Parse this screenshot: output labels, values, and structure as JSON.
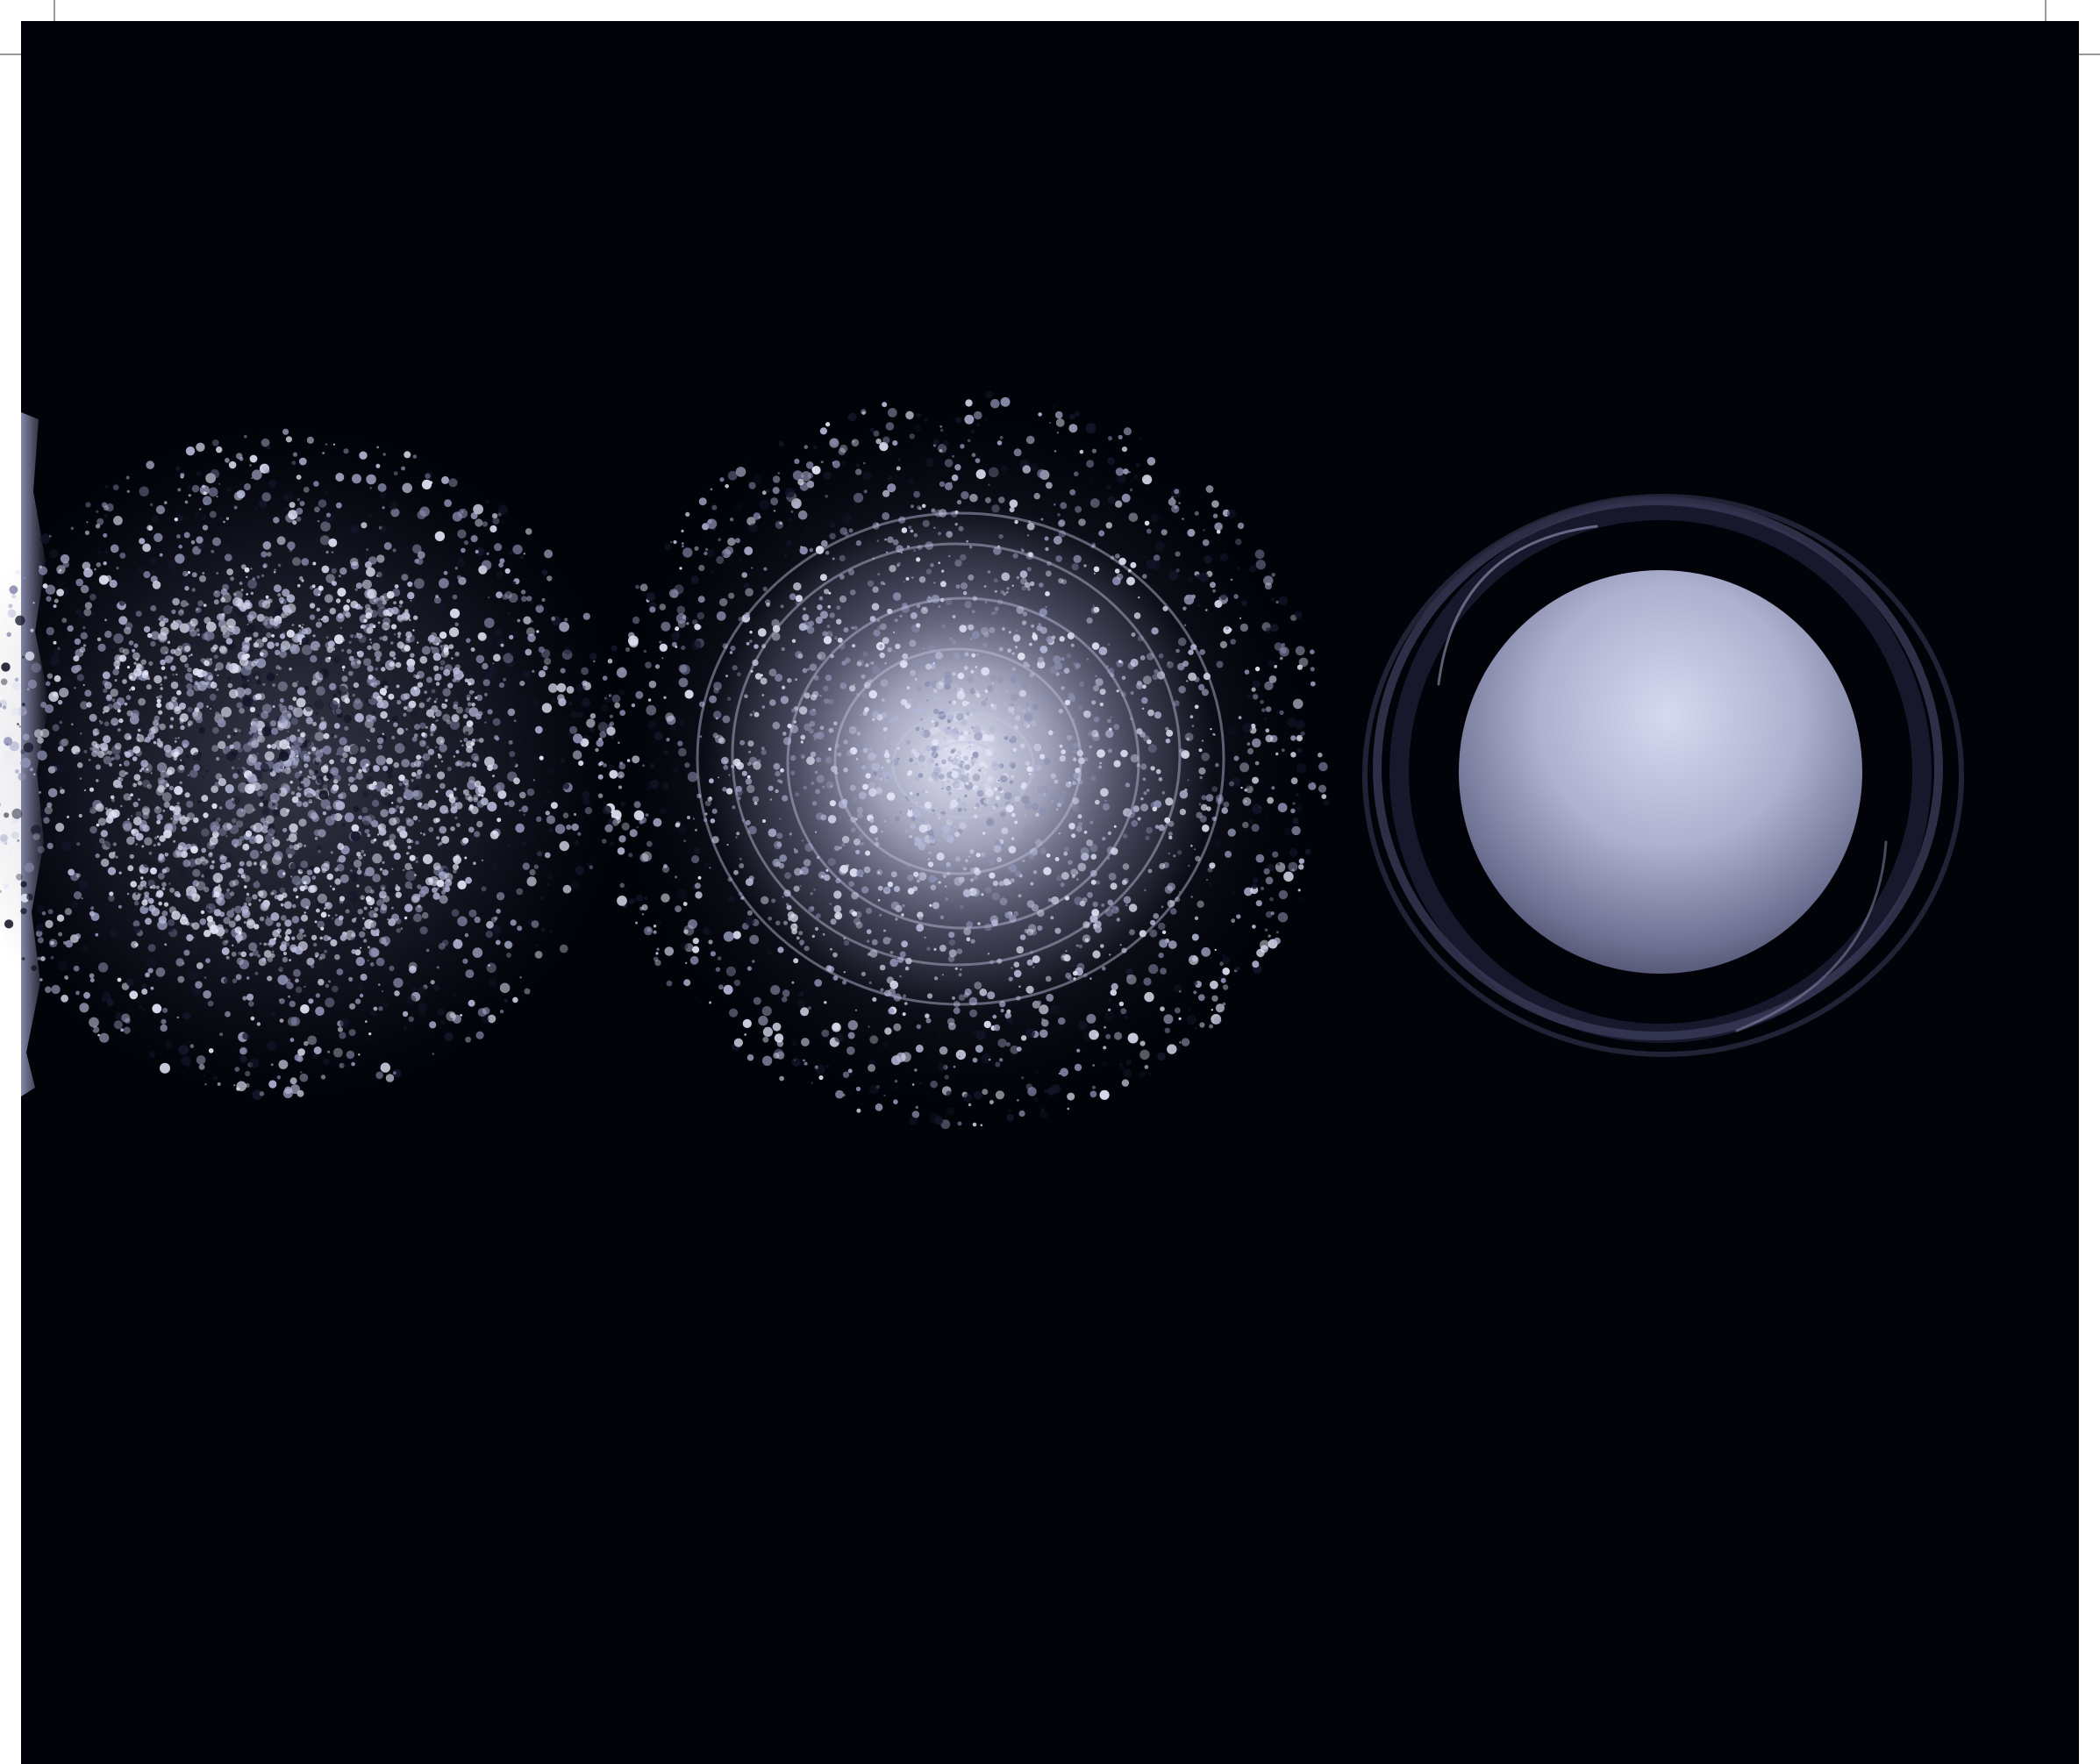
{
  "colors": {
    "page": "#ffffff",
    "night": "#020209",
    "lavender": "#b4b7d6",
    "mist": "#8d90b2",
    "highlight": "#e3e5f7",
    "shadow": "#15152a"
  },
  "figures": [
    {
      "name": "dispersed-dust-cloud",
      "stage": "diffuse"
    },
    {
      "name": "swirling-nebula",
      "stage": "condensing"
    },
    {
      "name": "formed-sphere",
      "stage": "solid"
    }
  ]
}
